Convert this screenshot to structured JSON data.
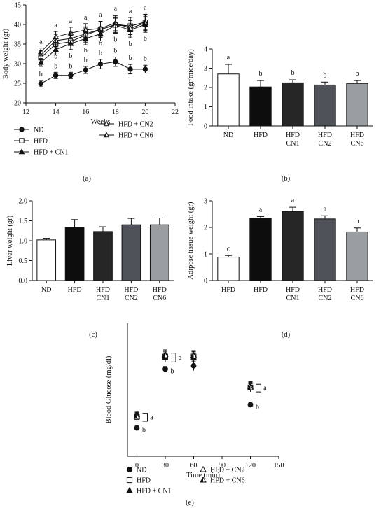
{
  "chart_data": [
    {
      "panel": "(a)",
      "type": "line",
      "xlabel": "Weeks",
      "ylabel": "Body weight (gr)",
      "xlim": [
        12,
        22
      ],
      "ylim": [
        20,
        45
      ],
      "xticks": [
        12,
        14,
        16,
        18,
        20,
        22
      ],
      "yticks": [
        20,
        25,
        30,
        35,
        40,
        45
      ],
      "x": [
        13,
        14,
        15,
        16,
        17,
        18,
        19,
        20
      ],
      "series": [
        {
          "name": "ND",
          "marker": "circle",
          "fill": "#111111",
          "values": [
            24.9,
            27.0,
            27.0,
            28.4,
            29.9,
            30.5,
            28.6,
            28.6
          ],
          "err": [
            0.8,
            0.8,
            0.8,
            0.9,
            1.2,
            1.2,
            1.2,
            1.0
          ]
        },
        {
          "name": "HFD",
          "marker": "square",
          "fill": "#ffffff",
          "values": [
            31.5,
            35.0,
            35.6,
            37.3,
            38.7,
            40.0,
            39.6,
            40.6
          ],
          "err": [
            1.2,
            1.6,
            1.6,
            1.8,
            2.0,
            2.2,
            2.2,
            2.0
          ]
        },
        {
          "name": "HFD + CN1",
          "marker": "triangle",
          "fill": "#111111",
          "values": [
            30.3,
            33.6,
            35.1,
            36.4,
            37.6,
            39.8,
            38.6,
            40.0
          ],
          "err": [
            1.0,
            1.4,
            1.5,
            1.6,
            1.8,
            1.8,
            2.0,
            2.0
          ]
        },
        {
          "name": "HFD + CN2",
          "marker": "triangle",
          "fill": "#ffffff",
          "values": [
            32.2,
            35.9,
            36.4,
            37.6,
            38.8,
            39.8,
            39.6,
            40.6
          ],
          "err": [
            1.2,
            1.6,
            1.6,
            1.8,
            2.0,
            2.0,
            2.2,
            2.0
          ]
        },
        {
          "name": "HFD + CN6",
          "marker": "triangle-half",
          "fill": "#111111",
          "values": [
            33.0,
            36.8,
            37.8,
            38.6,
            39.0,
            40.4,
            39.0,
            40.4
          ],
          "err": [
            1.0,
            1.4,
            1.5,
            1.6,
            1.8,
            2.0,
            2.0,
            2.0
          ]
        }
      ],
      "letters_top": [
        "a",
        "a",
        "a",
        "a",
        "a",
        "a",
        "a",
        "a"
      ],
      "letters_mid": [
        "b",
        "b",
        "b",
        "b",
        "b",
        "b",
        "b",
        "b"
      ],
      "letters_low": [
        "b",
        "b",
        "b",
        "b",
        "b",
        "b",
        "b",
        "b"
      ],
      "legend": {
        "left": [
          "ND",
          "HFD",
          "HFD + CN1"
        ],
        "right": [
          "HFD + CN2",
          "HFD + CN6"
        ]
      }
    },
    {
      "panel": "(b)",
      "type": "bar",
      "ylabel": "Food intake (gr/mice/day)",
      "ylim": [
        0,
        4
      ],
      "yticks": [
        0,
        1,
        2,
        3,
        4
      ],
      "categories": [
        "ND",
        "HFD",
        "HFD\nCN1",
        "HFD\nCN2",
        "HFD\nCN6"
      ],
      "values": [
        2.7,
        2.03,
        2.24,
        2.13,
        2.21
      ],
      "err": [
        0.5,
        0.33,
        0.16,
        0.15,
        0.15
      ],
      "letters": [
        "a",
        "b",
        "b",
        "b",
        "b"
      ]
    },
    {
      "panel": "(c)",
      "type": "bar",
      "ylabel": "Liver weight (gr)",
      "ylim": [
        0,
        2.0
      ],
      "yticks": [
        0.0,
        0.5,
        1.0,
        1.5,
        2.0
      ],
      "categories": [
        "ND",
        "HFD",
        "HFD\nCN1",
        "HFD\nCN2",
        "HFD\nCN6"
      ],
      "values": [
        1.02,
        1.33,
        1.23,
        1.4,
        1.4
      ],
      "err": [
        0.04,
        0.2,
        0.12,
        0.16,
        0.17
      ],
      "letters": [
        "",
        "",
        "",
        "",
        ""
      ]
    },
    {
      "panel": "(d)",
      "type": "bar",
      "ylabel": "Adipose tissue weight (gr)",
      "ylim": [
        0,
        3
      ],
      "yticks": [
        0,
        1,
        2,
        3
      ],
      "categories": [
        "HFD",
        "HFD",
        "HFD\nCN1",
        "HFD\nCN2",
        "HFD\nCN6"
      ],
      "values": [
        0.88,
        2.33,
        2.6,
        2.32,
        1.83
      ],
      "err": [
        0.06,
        0.08,
        0.16,
        0.12,
        0.15
      ],
      "letters": [
        "c",
        "a",
        "a",
        "a",
        "b"
      ]
    },
    {
      "panel": "(e)",
      "type": "scatter",
      "xlabel": "Time (min)",
      "ylabel": "Blood Glucose (mg/dl)",
      "xlim": [
        -10,
        150
      ],
      "ylim": [
        0,
        400
      ],
      "xticks": [
        0,
        30,
        60,
        90,
        120,
        150
      ],
      "yticks": [],
      "x": [
        0,
        30,
        60,
        120
      ],
      "series": [
        {
          "name": "ND",
          "marker": "circle",
          "fill": "#111111",
          "values": [
            85,
            262,
            272,
            155
          ],
          "err": [
            6,
            8,
            14,
            8
          ]
        },
        {
          "name": "HFD",
          "marker": "square",
          "fill": "#ffffff",
          "values": [
            118,
            300,
            300,
            207
          ],
          "err": [
            10,
            14,
            14,
            12
          ]
        },
        {
          "name": "HFD + CN1",
          "marker": "triangle",
          "fill": "#111111",
          "values": [
            125,
            296,
            296,
            210
          ],
          "err": [
            10,
            14,
            14,
            12
          ]
        },
        {
          "name": "HFD + CN2",
          "marker": "triangle",
          "fill": "#ffffff",
          "values": [
            122,
            306,
            304,
            212
          ],
          "err": [
            10,
            14,
            14,
            12
          ]
        },
        {
          "name": "HFD + CN6",
          "marker": "triangle-half",
          "fill": "#111111",
          "values": [
            120,
            303,
            302,
            206
          ],
          "err": [
            10,
            14,
            14,
            12
          ]
        }
      ],
      "bracket_letters": [
        "a",
        "a",
        "",
        "a"
      ],
      "nd_letters": [
        "b",
        "b",
        "",
        "b"
      ],
      "legend": {
        "left": [
          "ND",
          "HFD",
          "HFD + CN1"
        ],
        "right": [
          "HFD + CN2",
          "HFD + CN6"
        ]
      }
    }
  ]
}
